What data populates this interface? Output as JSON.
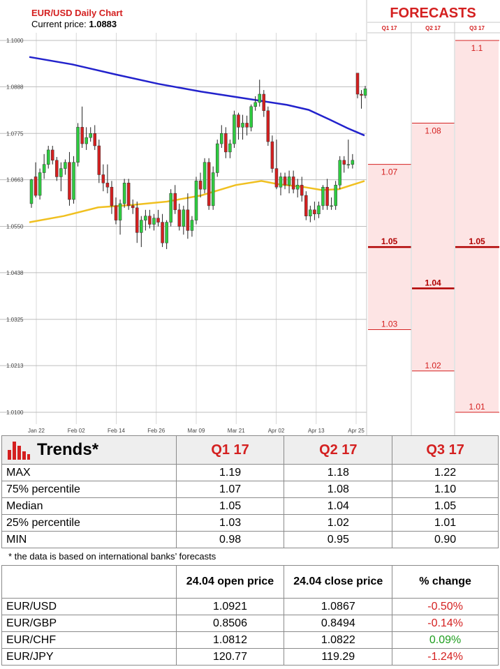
{
  "chart_header": {
    "title": "EUR/USD Daily Chart",
    "current_price_label": "Current price: ",
    "current_price_value": "1.0883"
  },
  "forecasts_panel": {
    "title": "FORECASTS",
    "columns": [
      "Q1 17",
      "Q2 17",
      "Q3 17"
    ]
  },
  "chart_data": [
    {
      "type": "candlestick",
      "title": "EUR/USD Daily Chart",
      "ylim": [
        1.01,
        1.1
      ],
      "y_ticks": [
        "1.1000",
        "1.0888",
        "1.0775",
        "1.0663",
        "1.0550",
        "1.0438",
        "1.0325",
        "1.0213",
        "1.0100"
      ],
      "x_ticks": [
        "Jan 22",
        "Feb 02",
        "Feb 14",
        "Feb 26",
        "Mar 09",
        "Mar 21",
        "Apr 02",
        "Apr 13",
        "Apr 25"
      ],
      "grid": true,
      "candles": [
        [
          1.0605,
          1.0665,
          1.0595,
          1.0663
        ],
        [
          1.067,
          1.0705,
          1.062,
          1.0625
        ],
        [
          1.0625,
          1.069,
          1.0615,
          1.068
        ],
        [
          1.068,
          1.0725,
          1.0665,
          1.07
        ],
        [
          1.07,
          1.0745,
          1.069,
          1.0735
        ],
        [
          1.0735,
          1.0745,
          1.07,
          1.071
        ],
        [
          1.071,
          1.0718,
          1.066,
          1.067
        ],
        [
          1.067,
          1.0705,
          1.0635,
          1.069
        ],
        [
          1.069,
          1.0712,
          1.0675,
          1.0705
        ],
        [
          1.0705,
          1.073,
          1.06,
          1.0615
        ],
        [
          1.0615,
          1.072,
          1.0605,
          1.0705
        ],
        [
          1.0705,
          1.08,
          1.0695,
          1.079
        ],
        [
          1.079,
          1.084,
          1.074,
          1.075
        ],
        [
          1.075,
          1.079,
          1.0735,
          1.0765
        ],
        [
          1.0765,
          1.079,
          1.0755,
          1.0775
        ],
        [
          1.0775,
          1.0795,
          1.0735,
          1.0745
        ],
        [
          1.0745,
          1.076,
          1.0655,
          1.0675
        ],
        [
          1.0675,
          1.07,
          1.0635,
          1.0655
        ],
        [
          1.0655,
          1.07,
          1.063,
          1.0645
        ],
        [
          1.0645,
          1.066,
          1.058,
          1.06
        ],
        [
          1.06,
          1.062,
          1.0555,
          1.0565
        ],
        [
          1.0565,
          1.0615,
          1.053,
          1.0605
        ],
        [
          1.0605,
          1.0665,
          1.0595,
          1.0655
        ],
        [
          1.0655,
          1.0665,
          1.059,
          1.06
        ],
        [
          1.06,
          1.0615,
          1.058,
          1.0595
        ],
        [
          1.0595,
          1.061,
          1.051,
          1.0535
        ],
        [
          1.0535,
          1.0575,
          1.05,
          1.0565
        ],
        [
          1.0565,
          1.059,
          1.054,
          1.0575
        ],
        [
          1.0575,
          1.059,
          1.0545,
          1.0555
        ],
        [
          1.0555,
          1.058,
          1.054,
          1.057
        ],
        [
          1.057,
          1.059,
          1.055,
          1.056
        ],
        [
          1.056,
          1.058,
          1.05,
          1.051
        ],
        [
          1.051,
          1.0565,
          1.0495,
          1.056
        ],
        [
          1.056,
          1.064,
          1.055,
          1.063
        ],
        [
          1.063,
          1.065,
          1.058,
          1.059
        ],
        [
          1.059,
          1.0605,
          1.054,
          1.055
        ],
        [
          1.055,
          1.06,
          1.053,
          1.059
        ],
        [
          1.059,
          1.063,
          1.052,
          1.054
        ],
        [
          1.054,
          1.0575,
          1.0525,
          1.0565
        ],
        [
          1.0565,
          1.067,
          1.0555,
          1.066
        ],
        [
          1.066,
          1.068,
          1.062,
          1.064
        ],
        [
          1.064,
          1.0715,
          1.063,
          1.0705
        ],
        [
          1.0705,
          1.0715,
          1.059,
          1.06
        ],
        [
          1.06,
          1.0695,
          1.059,
          1.068
        ],
        [
          1.068,
          1.076,
          1.067,
          1.075
        ],
        [
          1.075,
          1.0795,
          1.074,
          1.0775
        ],
        [
          1.0775,
          1.079,
          1.0715,
          1.073
        ],
        [
          1.073,
          1.076,
          1.0715,
          1.075
        ],
        [
          1.075,
          1.083,
          1.074,
          1.082
        ],
        [
          1.082,
          1.0825,
          1.076,
          1.079
        ],
        [
          1.079,
          1.082,
          1.076,
          1.08
        ],
        [
          1.08,
          1.0818,
          1.077,
          1.079
        ],
        [
          1.079,
          1.0845,
          1.078,
          1.084
        ],
        [
          1.084,
          1.0865,
          1.083,
          1.085
        ],
        [
          1.085,
          1.0905,
          1.084,
          1.087
        ],
        [
          1.087,
          1.088,
          1.0815,
          1.083
        ],
        [
          1.083,
          1.084,
          1.0745,
          1.0755
        ],
        [
          1.0755,
          1.077,
          1.068,
          1.069
        ],
        [
          1.069,
          1.076,
          1.064,
          1.0645
        ],
        [
          1.0645,
          1.068,
          1.0625,
          1.067
        ],
        [
          1.067,
          1.068,
          1.064,
          1.065
        ],
        [
          1.065,
          1.0685,
          1.063,
          1.067
        ],
        [
          1.067,
          1.0685,
          1.063,
          1.064
        ],
        [
          1.064,
          1.0665,
          1.062,
          1.065
        ],
        [
          1.065,
          1.067,
          1.061,
          1.0625
        ],
        [
          1.0625,
          1.0635,
          1.0565,
          1.0575
        ],
        [
          1.0575,
          1.06,
          1.056,
          1.059
        ],
        [
          1.059,
          1.061,
          1.0565,
          1.058
        ],
        [
          1.058,
          1.061,
          1.057,
          1.06
        ],
        [
          1.06,
          1.065,
          1.059,
          1.0645
        ],
        [
          1.0645,
          1.0665,
          1.059,
          1.06
        ],
        [
          1.06,
          1.062,
          1.059,
          1.06
        ],
        [
          1.06,
          1.066,
          1.059,
          1.065
        ],
        [
          1.065,
          1.072,
          1.064,
          1.071
        ],
        [
          1.071,
          1.072,
          1.068,
          1.07
        ],
        [
          1.07,
          1.076,
          1.069,
          1.07
        ],
        [
          1.07,
          1.0725,
          1.069,
          1.071
        ],
        [
          1.0921,
          1.0921,
          1.086,
          1.087
        ],
        [
          1.087,
          1.088,
          1.0835,
          1.0867
        ],
        [
          1.0867,
          1.089,
          1.086,
          1.0883
        ]
      ],
      "series": [
        {
          "name": "",
          "color": "#2222cc",
          "x": [
            0,
            78
          ],
          "y": [
            1.096,
            1.076
          ],
          "curve": [
            [
              0,
              1.096
            ],
            [
              10,
              1.0942
            ],
            [
              20,
              1.0918
            ],
            [
              30,
              1.0895
            ],
            [
              40,
              1.0876
            ],
            [
              50,
              1.086
            ],
            [
              60,
              1.0844
            ],
            [
              65,
              1.0832
            ],
            [
              70,
              1.0808
            ],
            [
              74,
              1.0788
            ],
            [
              78,
              1.077
            ]
          ]
        },
        {
          "name": "",
          "color": "#f0c020",
          "curve": [
            [
              0,
              1.056
            ],
            [
              8,
              1.0575
            ],
            [
              16,
              1.0596
            ],
            [
              24,
              1.0602
            ],
            [
              32,
              1.061
            ],
            [
              40,
              1.0625
            ],
            [
              48,
              1.065
            ],
            [
              54,
              1.066
            ],
            [
              58,
              1.0652
            ],
            [
              64,
              1.0645
            ],
            [
              68,
              1.0638
            ],
            [
              72,
              1.064
            ],
            [
              78,
              1.066
            ]
          ]
        }
      ]
    },
    {
      "type": "range-bars",
      "title": "FORECASTS",
      "categories": [
        "Q1 17",
        "Q2 17",
        "Q3 17"
      ],
      "ylim": [
        1.01,
        1.1
      ],
      "ranges": [
        {
          "category": "Q1 17",
          "high": 1.07,
          "median": 1.05,
          "low": 1.03
        },
        {
          "category": "Q2 17",
          "high": 1.08,
          "median": 1.04,
          "low": 1.02
        },
        {
          "category": "Q3 17",
          "high": 1.1,
          "median": 1.05,
          "low": 1.01
        }
      ],
      "labels": {
        "Q1 17": {
          "high": "1.07",
          "median": "1.05",
          "low": "1.03"
        },
        "Q2 17": {
          "high": "1.08",
          "median": "1.04",
          "low": "1.02"
        },
        "Q3 17": {
          "high": "1.1",
          "median": "1.05",
          "low": "1.01"
        }
      }
    }
  ],
  "trends": {
    "title": "Trends*",
    "columns": [
      "Q1 17",
      "Q2 17",
      "Q3 17"
    ],
    "rows": [
      {
        "label": "MAX",
        "values": [
          "1.19",
          "1.18",
          "1.22"
        ]
      },
      {
        "label": "75% percentile",
        "values": [
          "1.07",
          "1.08",
          "1.10"
        ]
      },
      {
        "label": "Median",
        "values": [
          "1.05",
          "1.04",
          "1.05"
        ]
      },
      {
        "label": "25% percentile",
        "values": [
          "1.03",
          "1.02",
          "1.01"
        ]
      },
      {
        "label": "MIN",
        "values": [
          "0.98",
          "0.95",
          "0.90"
        ]
      }
    ],
    "footnote": "* the data is based on international banks’ forecasts"
  },
  "prices": {
    "headers": [
      "",
      "24.04 open price",
      "24.04 close price",
      "% change"
    ],
    "rows": [
      {
        "pair": "EUR/USD",
        "open": "1.0921",
        "close": "1.0867",
        "change": "-0.50%",
        "change_color": "#d42020"
      },
      {
        "pair": "EUR/GBP",
        "open": "0.8506",
        "close": "0.8494",
        "change": "-0.14%",
        "change_color": "#d42020"
      },
      {
        "pair": "EUR/CHF",
        "open": "1.0812",
        "close": "1.0822",
        "change": "0.09%",
        "change_color": "#1e9e1e"
      },
      {
        "pair": "EUR/JPY",
        "open": "120.77",
        "close": "119.29",
        "change": "-1.24%",
        "change_color": "#d42020"
      }
    ]
  },
  "colors": {
    "accent_red": "#d42020",
    "bull_green": "#2ecc40",
    "bear_red": "#d42020",
    "ma_long": "#2222cc",
    "ma_short": "#f0c020",
    "forecast_fill": "#fde4e4"
  }
}
